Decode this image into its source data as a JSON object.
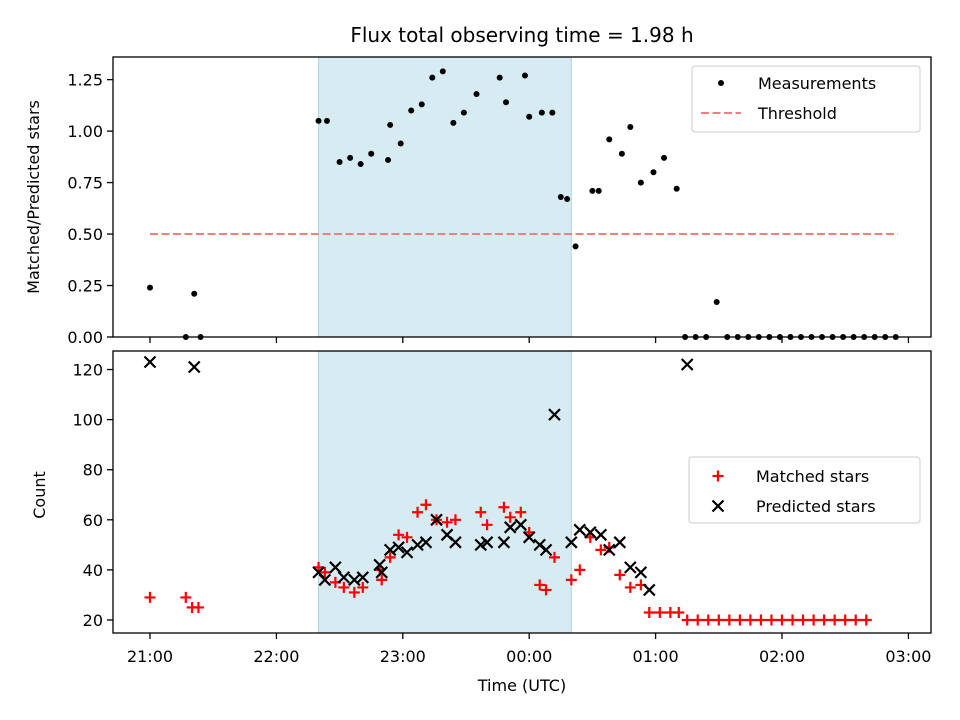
{
  "title": "Flux total observing time = 1.98 h",
  "xlabel": "Time (UTC)",
  "x_ticks": [
    "21:00",
    "22:00",
    "23:00",
    "00:00",
    "01:00",
    "02:00",
    "03:00"
  ],
  "colors": {
    "span": "#add8e6",
    "measurement": "#000000",
    "threshold": "#f08080",
    "matched": "#ff0000",
    "predicted": "#000000"
  },
  "chart_data": [
    {
      "type": "scatter",
      "ylabel": "Matched/Predicted stars",
      "ylim": [
        0,
        1.36
      ],
      "yticks": [
        0,
        0.25,
        0.5,
        0.75,
        1.0,
        1.25
      ],
      "ytick_labels": [
        "0.00",
        "0.25",
        "0.50",
        "0.75",
        "1.00",
        "1.25"
      ],
      "xlim": [
        "20:44",
        "03:07"
      ],
      "highlight_span": [
        "22:20",
        "00:20"
      ],
      "threshold": {
        "name": "Threshold",
        "y": 0.5,
        "x": [
          "21:00",
          "02:55"
        ],
        "style": "dashed"
      },
      "legend": {
        "placement": "upper right",
        "entries": [
          "Measurements",
          "Threshold"
        ]
      },
      "series": [
        {
          "name": "Measurements",
          "marker": "dot",
          "points": [
            [
              "21:00",
              0.24
            ],
            [
              "21:17",
              0.0
            ],
            [
              "21:21",
              0.21
            ],
            [
              "21:24",
              0.0
            ],
            [
              "22:20",
              1.05
            ],
            [
              "22:24",
              1.05
            ],
            [
              "22:30",
              0.85
            ],
            [
              "22:35",
              0.87
            ],
            [
              "22:40",
              0.84
            ],
            [
              "22:45",
              0.89
            ],
            [
              "22:53",
              0.86
            ],
            [
              "22:54",
              1.03
            ],
            [
              "22:59",
              0.94
            ],
            [
              "23:04",
              1.1
            ],
            [
              "23:09",
              1.13
            ],
            [
              "23:14",
              1.26
            ],
            [
              "23:19",
              1.29
            ],
            [
              "23:24",
              1.04
            ],
            [
              "23:29",
              1.09
            ],
            [
              "23:35",
              1.18
            ],
            [
              "23:46",
              1.26
            ],
            [
              "23:49",
              1.14
            ],
            [
              "23:58",
              1.27
            ],
            [
              "00:00",
              1.07
            ],
            [
              "00:06",
              1.09
            ],
            [
              "00:11",
              1.09
            ],
            [
              "00:15",
              0.68
            ],
            [
              "00:18",
              0.67
            ],
            [
              "00:22",
              0.44
            ],
            [
              "00:30",
              0.71
            ],
            [
              "00:33",
              0.71
            ],
            [
              "00:38",
              0.96
            ],
            [
              "00:44",
              0.89
            ],
            [
              "00:48",
              1.02
            ],
            [
              "00:53",
              0.75
            ],
            [
              "00:59",
              0.8
            ],
            [
              "01:04",
              0.87
            ],
            [
              "01:10",
              0.72
            ],
            [
              "01:14",
              0.0
            ],
            [
              "01:19",
              0.0
            ],
            [
              "01:24",
              0.0
            ],
            [
              "01:29",
              0.17
            ],
            [
              "01:34",
              0.0
            ],
            [
              "01:39",
              0.0
            ],
            [
              "01:44",
              0.0
            ],
            [
              "01:49",
              0.0
            ],
            [
              "01:54",
              0.0
            ],
            [
              "01:59",
              0.0
            ],
            [
              "02:04",
              0.0
            ],
            [
              "02:09",
              0.0
            ],
            [
              "02:14",
              0.0
            ],
            [
              "02:19",
              0.0
            ],
            [
              "02:24",
              0.0
            ],
            [
              "02:29",
              0.0
            ],
            [
              "02:34",
              0.0
            ],
            [
              "02:39",
              0.0
            ],
            [
              "02:44",
              0.0
            ],
            [
              "02:49",
              0.0
            ],
            [
              "02:54",
              0.0
            ]
          ]
        }
      ]
    },
    {
      "type": "scatter",
      "ylabel": "Count",
      "ylim": [
        14.8,
        127.4
      ],
      "yticks": [
        20,
        40,
        60,
        80,
        100,
        120
      ],
      "ytick_labels": [
        "20",
        "40",
        "60",
        "80",
        "100",
        "120"
      ],
      "xlim": [
        "20:44",
        "03:07"
      ],
      "highlight_span": [
        "22:20",
        "00:20"
      ],
      "legend": {
        "placement": "center right",
        "entries": [
          "Matched stars",
          "Predicted stars"
        ]
      },
      "series": [
        {
          "name": "Matched stars",
          "marker": "plus",
          "points": [
            [
              "21:00",
              29
            ],
            [
              "21:17",
              29
            ],
            [
              "21:20",
              25
            ],
            [
              "21:23",
              25
            ],
            [
              "22:20",
              41
            ],
            [
              "22:23",
              39
            ],
            [
              "22:28",
              35
            ],
            [
              "22:32",
              33
            ],
            [
              "22:37",
              31
            ],
            [
              "22:41",
              33
            ],
            [
              "22:49",
              40
            ],
            [
              "22:50",
              36
            ],
            [
              "22:54",
              45
            ],
            [
              "22:58",
              54
            ],
            [
              "23:02",
              53
            ],
            [
              "23:07",
              63
            ],
            [
              "23:11",
              66
            ],
            [
              "23:16",
              60
            ],
            [
              "23:21",
              59
            ],
            [
              "23:25",
              60
            ],
            [
              "23:37",
              63
            ],
            [
              "23:40",
              58
            ],
            [
              "23:48",
              65
            ],
            [
              "23:51",
              61
            ],
            [
              "23:56",
              63
            ],
            [
              "24:00",
              55
            ],
            [
              "24:05",
              34
            ],
            [
              "24:08",
              32
            ],
            [
              "24:12",
              45
            ],
            [
              "24:20",
              36
            ],
            [
              "24:24",
              40
            ],
            [
              "24:29",
              53
            ],
            [
              "24:34",
              48
            ],
            [
              "24:38",
              49
            ],
            [
              "24:43",
              38
            ],
            [
              "24:48",
              33
            ],
            [
              "24:53",
              34
            ],
            [
              "24:57",
              23
            ],
            [
              "25:02",
              23
            ],
            [
              "25:07",
              23
            ],
            [
              "25:11",
              23
            ],
            [
              "25:15",
              20
            ],
            [
              "25:20",
              20
            ],
            [
              "25:25",
              20
            ],
            [
              "25:30",
              20
            ],
            [
              "25:35",
              20
            ],
            [
              "25:40",
              20
            ],
            [
              "25:45",
              20
            ],
            [
              "25:50",
              20
            ],
            [
              "25:55",
              20
            ],
            [
              "26:00",
              20
            ],
            [
              "26:05",
              20
            ],
            [
              "26:10",
              20
            ],
            [
              "26:15",
              20
            ],
            [
              "26:20",
              20
            ],
            [
              "26:25",
              20
            ],
            [
              "26:30",
              20
            ],
            [
              "26:35",
              20
            ],
            [
              "26:40",
              20
            ]
          ]
        },
        {
          "name": "Predicted stars",
          "marker": "x",
          "points": [
            [
              "21:00",
              123
            ],
            [
              "21:21",
              121
            ],
            [
              "22:20",
              39
            ],
            [
              "22:23",
              36
            ],
            [
              "22:28",
              41
            ],
            [
              "22:32",
              37
            ],
            [
              "22:37",
              36
            ],
            [
              "22:41",
              37
            ],
            [
              "22:49",
              42
            ],
            [
              "22:50",
              39
            ],
            [
              "22:54",
              48
            ],
            [
              "22:58",
              49
            ],
            [
              "23:02",
              47
            ],
            [
              "23:07",
              50
            ],
            [
              "23:11",
              51
            ],
            [
              "23:16",
              60
            ],
            [
              "23:21",
              54
            ],
            [
              "23:25",
              51
            ],
            [
              "23:37",
              50
            ],
            [
              "23:40",
              51
            ],
            [
              "23:48",
              51
            ],
            [
              "23:51",
              57
            ],
            [
              "23:56",
              58
            ],
            [
              "24:00",
              53
            ],
            [
              "24:05",
              50
            ],
            [
              "24:08",
              48
            ],
            [
              "24:12",
              102
            ],
            [
              "24:20",
              51
            ],
            [
              "24:24",
              56
            ],
            [
              "24:29",
              55
            ],
            [
              "24:34",
              54
            ],
            [
              "24:38",
              48
            ],
            [
              "24:43",
              51
            ],
            [
              "24:48",
              41
            ],
            [
              "24:53",
              39
            ],
            [
              "24:57",
              32
            ],
            [
              "25:15",
              122
            ]
          ]
        }
      ]
    }
  ]
}
